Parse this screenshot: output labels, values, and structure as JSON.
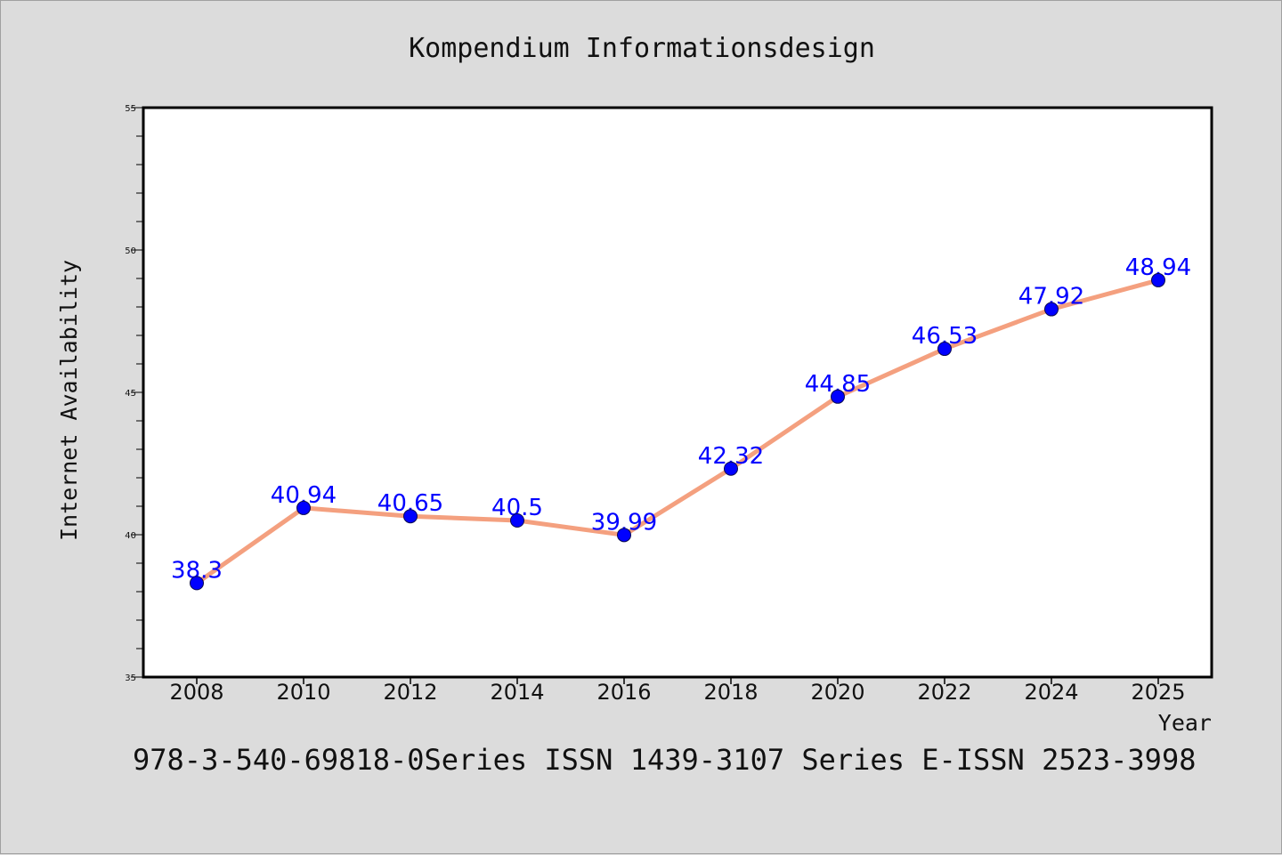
{
  "chart_data": {
    "type": "line",
    "title": "Kompendium Informationsdesign",
    "xlabel": "Year",
    "ylabel": "Internet Availability",
    "caption": "978-3-540-69818-0Series ISSN 1439-3107 Series E-ISSN 2523-3998",
    "categories": [
      "2008",
      "2010",
      "2012",
      "2014",
      "2016",
      "2018",
      "2020",
      "2022",
      "2024",
      "2025"
    ],
    "series": [
      {
        "values": [
          38.3,
          40.94,
          40.65,
          40.5,
          39.99,
          42.32,
          44.85,
          46.53,
          47.92,
          48.94
        ],
        "data_labels": [
          "38.3",
          "40.94",
          "40.65",
          "40.5",
          "39.99",
          "42.32",
          "44.85",
          "46.53",
          "47.92",
          "48.94"
        ],
        "line_color": "#f4a07f",
        "marker_color": "#0000ff"
      }
    ],
    "ylim": [
      35,
      55
    ],
    "yticks": [
      35,
      40,
      45,
      50,
      55
    ],
    "ytick_labels": [
      "35",
      "40",
      "45",
      "50",
      "55"
    ],
    "grid": false,
    "legend": "none",
    "plot_background": "#ffffff",
    "page_background": "#dcdcdc"
  }
}
